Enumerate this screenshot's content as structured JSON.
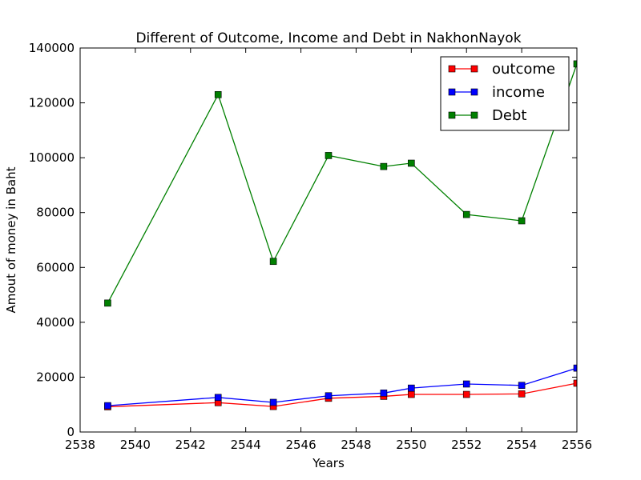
{
  "chart_data": {
    "type": "line",
    "title": "Different of Outcome, Income and Debt in NakhonNayok",
    "xlabel": "Years",
    "ylabel": "Amout of money in Baht",
    "xlim": [
      2538,
      2556
    ],
    "ylim": [
      0,
      140000
    ],
    "x_ticks": [
      "2538",
      "2540",
      "2542",
      "2544",
      "2546",
      "2548",
      "2550",
      "2552",
      "2554",
      "2556"
    ],
    "y_ticks": [
      "0",
      "20000",
      "40000",
      "60000",
      "80000",
      "100000",
      "120000",
      "140000"
    ],
    "x": [
      2539,
      2543,
      2545,
      2547,
      2549,
      2550,
      2552,
      2554,
      2556
    ],
    "grid": false,
    "legend_position": "top-right",
    "series": [
      {
        "name": "outcome",
        "color": "#ff0000",
        "values": [
          9200,
          10700,
          9300,
          12300,
          13000,
          13700,
          13700,
          13900,
          17800
        ]
      },
      {
        "name": "income",
        "color": "#0000ff",
        "values": [
          9600,
          12600,
          10800,
          13200,
          14200,
          16000,
          17500,
          17000,
          23300
        ]
      },
      {
        "name": "Debt",
        "color": "#008000",
        "values": [
          47000,
          123000,
          62200,
          100800,
          96800,
          98000,
          79300,
          77000,
          134200
        ]
      }
    ]
  }
}
